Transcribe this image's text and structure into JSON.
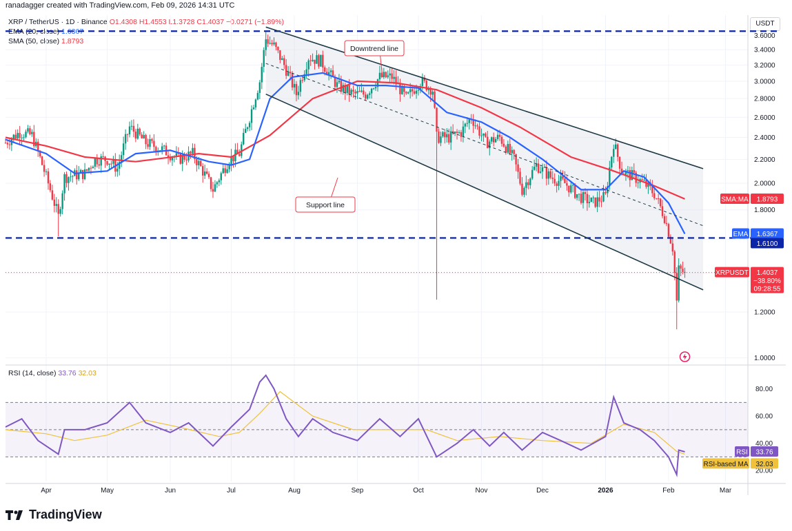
{
  "header": {
    "attribution": "ranadagger created with TradingView.com, Feb 09, 2026 14:31 UTC"
  },
  "legend": {
    "symbol": "XRP / TetherUS · 1D · Binance",
    "ohlc": "O1.4308 H1.4553 L1.3728 C1.4037 −0.0271 (−1.89%)",
    "ema_label": "EMA (20, close)",
    "ema_value": "1.6367",
    "sma_label": "SMA (50, close)",
    "sma_value": "1.8793",
    "rsi_label": "RSI (14, close)",
    "rsi_value": "33.76",
    "rsi_ma_value": "32.03"
  },
  "currency": "USDT",
  "logo": "TradingView",
  "colors": {
    "bull": "#089981",
    "bear": "#f23645",
    "ema": "#2962ff",
    "sma": "#f23645",
    "rsi": "#7e57c2",
    "rsi_ma": "#f0c23b",
    "level": "#0b24a8",
    "channel": "#1e3a46"
  },
  "chart_data": [
    {
      "type": "candlestick",
      "title": "XRP / TetherUS · 1D · Binance",
      "y_scale": "log",
      "ylim": [
        0.98,
        3.9
      ],
      "y_ticks": [
        "1.0000",
        "1.2000",
        "1.4000",
        "1.6000",
        "1.8000",
        "2.0000",
        "2.2000",
        "2.4000",
        "2.6000",
        "2.8000",
        "3.0000",
        "3.2000",
        "3.4000",
        "3.6000"
      ],
      "x_ticks": [
        "Apr",
        "May",
        "Jun",
        "Jul",
        "Aug",
        "Sep",
        "Oct",
        "Nov",
        "Dec",
        "2026",
        "Feb",
        "Mar"
      ],
      "x_range": [
        "2025-03-12",
        "2026-03-12"
      ],
      "price_path": [
        [
          "2025-03-12",
          2.35
        ],
        [
          "2025-03-19",
          2.45
        ],
        [
          "2025-03-25",
          2.42
        ],
        [
          "2025-04-01",
          2.05
        ],
        [
          "2025-04-07",
          1.75
        ],
        [
          "2025-04-10",
          2.05
        ],
        [
          "2025-04-20",
          2.08
        ],
        [
          "2025-04-25",
          2.2
        ],
        [
          "2025-05-01",
          2.2
        ],
        [
          "2025-05-06",
          2.12
        ],
        [
          "2025-05-12",
          2.5
        ],
        [
          "2025-05-20",
          2.35
        ],
        [
          "2025-05-27",
          2.3
        ],
        [
          "2025-06-05",
          2.2
        ],
        [
          "2025-06-12",
          2.25
        ],
        [
          "2025-06-22",
          1.95
        ],
        [
          "2025-06-30",
          2.2
        ],
        [
          "2025-07-05",
          2.25
        ],
        [
          "2025-07-10",
          2.6
        ],
        [
          "2025-07-15",
          3.0
        ],
        [
          "2025-07-18",
          3.55
        ],
        [
          "2025-07-22",
          3.45
        ],
        [
          "2025-07-27",
          3.2
        ],
        [
          "2025-08-02",
          2.85
        ],
        [
          "2025-08-08",
          3.3
        ],
        [
          "2025-08-14",
          3.25
        ],
        [
          "2025-08-22",
          2.95
        ],
        [
          "2025-08-30",
          2.85
        ],
        [
          "2025-09-05",
          2.85
        ],
        [
          "2025-09-12",
          3.05
        ],
        [
          "2025-09-18",
          3.05
        ],
        [
          "2025-09-25",
          2.8
        ],
        [
          "2025-10-02",
          3.0
        ],
        [
          "2025-10-08",
          2.9
        ],
        [
          "2025-10-10",
          2.4
        ],
        [
          "2025-10-16",
          2.4
        ],
        [
          "2025-10-22",
          2.45
        ],
        [
          "2025-10-27",
          2.6
        ],
        [
          "2025-11-03",
          2.35
        ],
        [
          "2025-11-10",
          2.4
        ],
        [
          "2025-11-17",
          2.2
        ],
        [
          "2025-11-21",
          1.95
        ],
        [
          "2025-11-28",
          2.15
        ],
        [
          "2025-12-05",
          2.05
        ],
        [
          "2025-12-12",
          2.0
        ],
        [
          "2025-12-19",
          1.9
        ],
        [
          "2025-12-26",
          1.85
        ],
        [
          "2026-01-01",
          1.9
        ],
        [
          "2026-01-05",
          2.35
        ],
        [
          "2026-01-09",
          2.1
        ],
        [
          "2026-01-15",
          2.05
        ],
        [
          "2026-01-20",
          2.0
        ],
        [
          "2026-01-25",
          1.92
        ],
        [
          "2026-01-30",
          1.75
        ],
        [
          "2026-02-03",
          1.55
        ],
        [
          "2026-02-05",
          1.25
        ],
        [
          "2026-02-06",
          1.42
        ],
        [
          "2026-02-09",
          1.4037
        ]
      ],
      "series": [
        {
          "name": "EMA (20, close)",
          "last": 1.6367,
          "path": [
            [
              "2025-03-12",
              2.38
            ],
            [
              "2025-04-01",
              2.25
            ],
            [
              "2025-04-15",
              2.08
            ],
            [
              "2025-05-01",
              2.1
            ],
            [
              "2025-05-15",
              2.25
            ],
            [
              "2025-06-01",
              2.28
            ],
            [
              "2025-06-20",
              2.18
            ],
            [
              "2025-07-01",
              2.15
            ],
            [
              "2025-07-10",
              2.2
            ],
            [
              "2025-07-20",
              2.8
            ],
            [
              "2025-07-31",
              3.05
            ],
            [
              "2025-08-15",
              3.1
            ],
            [
              "2025-09-01",
              2.95
            ],
            [
              "2025-09-15",
              2.95
            ],
            [
              "2025-10-01",
              2.92
            ],
            [
              "2025-10-15",
              2.65
            ],
            [
              "2025-11-01",
              2.55
            ],
            [
              "2025-11-15",
              2.4
            ],
            [
              "2025-12-01",
              2.2
            ],
            [
              "2025-12-20",
              1.95
            ],
            [
              "2026-01-01",
              1.95
            ],
            [
              "2026-01-10",
              2.1
            ],
            [
              "2026-01-20",
              2.05
            ],
            [
              "2026-02-01",
              1.85
            ],
            [
              "2026-02-09",
              1.6367
            ]
          ]
        },
        {
          "name": "SMA (50, close)",
          "last": 1.8793,
          "path": [
            [
              "2025-03-12",
              2.4
            ],
            [
              "2025-04-01",
              2.32
            ],
            [
              "2025-04-20",
              2.22
            ],
            [
              "2025-05-15",
              2.18
            ],
            [
              "2025-06-15",
              2.25
            ],
            [
              "2025-07-01",
              2.22
            ],
            [
              "2025-07-20",
              2.42
            ],
            [
              "2025-08-10",
              2.8
            ],
            [
              "2025-09-01",
              3.0
            ],
            [
              "2025-09-20",
              2.98
            ],
            [
              "2025-10-10",
              2.9
            ],
            [
              "2025-11-01",
              2.7
            ],
            [
              "2025-11-20",
              2.5
            ],
            [
              "2025-12-15",
              2.22
            ],
            [
              "2026-01-05",
              2.1
            ],
            [
              "2026-01-25",
              1.98
            ],
            [
              "2026-02-09",
              1.8793
            ]
          ]
        }
      ],
      "levels": [
        1.61,
        3.66
      ],
      "level_labels": [
        "1.6100"
      ],
      "channel": {
        "upper": [
          [
            "2025-07-18",
            3.72
          ],
          [
            "2026-02-18",
            2.12
          ]
        ],
        "lower": [
          [
            "2025-07-18",
            2.85
          ],
          [
            "2026-02-18",
            1.31
          ]
        ],
        "mid": [
          [
            "2025-07-18",
            3.22
          ],
          [
            "2026-02-18",
            1.69
          ]
        ]
      },
      "annotations": [
        "Downtrend line",
        "Support line"
      ],
      "price_labels": [
        {
          "name": "SMA:MA",
          "value": "1.8793"
        },
        {
          "name": "EMA",
          "value": "1.6367"
        },
        {
          "name": "",
          "value": "1.6100"
        },
        {
          "name": "XRPUSDT",
          "value": "1.4037",
          "change": "−38.80%",
          "countdown": "09:28:55"
        }
      ]
    },
    {
      "type": "line",
      "title": "RSI (14, close)",
      "ylim": [
        12,
        96
      ],
      "y_ticks": [
        "20.00",
        "40.00",
        "60.00",
        "80.00"
      ],
      "bands": [
        30,
        50,
        70
      ],
      "series": [
        {
          "name": "RSI",
          "last": 33.76,
          "path": [
            [
              "2025-03-12",
              52
            ],
            [
              "2025-03-20",
              58
            ],
            [
              "2025-03-28",
              42
            ],
            [
              "2025-04-07",
              32
            ],
            [
              "2025-04-10",
              50
            ],
            [
              "2025-04-20",
              50
            ],
            [
              "2025-05-01",
              55
            ],
            [
              "2025-05-12",
              70
            ],
            [
              "2025-05-20",
              55
            ],
            [
              "2025-06-01",
              48
            ],
            [
              "2025-06-10",
              55
            ],
            [
              "2025-06-22",
              38
            ],
            [
              "2025-07-01",
              52
            ],
            [
              "2025-07-10",
              65
            ],
            [
              "2025-07-15",
              85
            ],
            [
              "2025-07-18",
              90
            ],
            [
              "2025-07-22",
              80
            ],
            [
              "2025-07-28",
              58
            ],
            [
              "2025-08-03",
              45
            ],
            [
              "2025-08-10",
              58
            ],
            [
              "2025-08-20",
              48
            ],
            [
              "2025-09-01",
              42
            ],
            [
              "2025-09-12",
              58
            ],
            [
              "2025-09-22",
              45
            ],
            [
              "2025-10-01",
              58
            ],
            [
              "2025-10-10",
              30
            ],
            [
              "2025-10-20",
              40
            ],
            [
              "2025-10-28",
              50
            ],
            [
              "2025-11-05",
              38
            ],
            [
              "2025-11-12",
              48
            ],
            [
              "2025-11-21",
              35
            ],
            [
              "2025-12-01",
              48
            ],
            [
              "2025-12-10",
              42
            ],
            [
              "2025-12-20",
              35
            ],
            [
              "2026-01-01",
              45
            ],
            [
              "2026-01-05",
              74
            ],
            [
              "2026-01-10",
              55
            ],
            [
              "2026-01-18",
              50
            ],
            [
              "2026-01-25",
              42
            ],
            [
              "2026-02-01",
              30
            ],
            [
              "2026-02-05",
              17
            ],
            [
              "2026-02-06",
              35
            ],
            [
              "2026-02-09",
              33.76
            ]
          ]
        },
        {
          "name": "RSI-based MA",
          "last": 32.03,
          "path": [
            [
              "2025-03-12",
              50
            ],
            [
              "2025-04-01",
              47
            ],
            [
              "2025-04-15",
              42
            ],
            [
              "2025-05-01",
              46
            ],
            [
              "2025-05-20",
              57
            ],
            [
              "2025-06-05",
              52
            ],
            [
              "2025-06-25",
              45
            ],
            [
              "2025-07-05",
              48
            ],
            [
              "2025-07-15",
              62
            ],
            [
              "2025-07-25",
              78
            ],
            [
              "2025-08-10",
              60
            ],
            [
              "2025-08-30",
              50
            ],
            [
              "2025-09-20",
              50
            ],
            [
              "2025-10-05",
              50
            ],
            [
              "2025-10-20",
              42
            ],
            [
              "2025-11-10",
              45
            ],
            [
              "2025-12-01",
              42
            ],
            [
              "2025-12-25",
              40
            ],
            [
              "2026-01-10",
              54
            ],
            [
              "2026-01-25",
              48
            ],
            [
              "2026-02-05",
              34
            ],
            [
              "2026-02-09",
              32.03
            ]
          ]
        }
      ],
      "price_labels": [
        {
          "name": "RSI",
          "value": "33.76"
        },
        {
          "name": "RSI-based MA",
          "value": "32.03"
        }
      ]
    }
  ]
}
